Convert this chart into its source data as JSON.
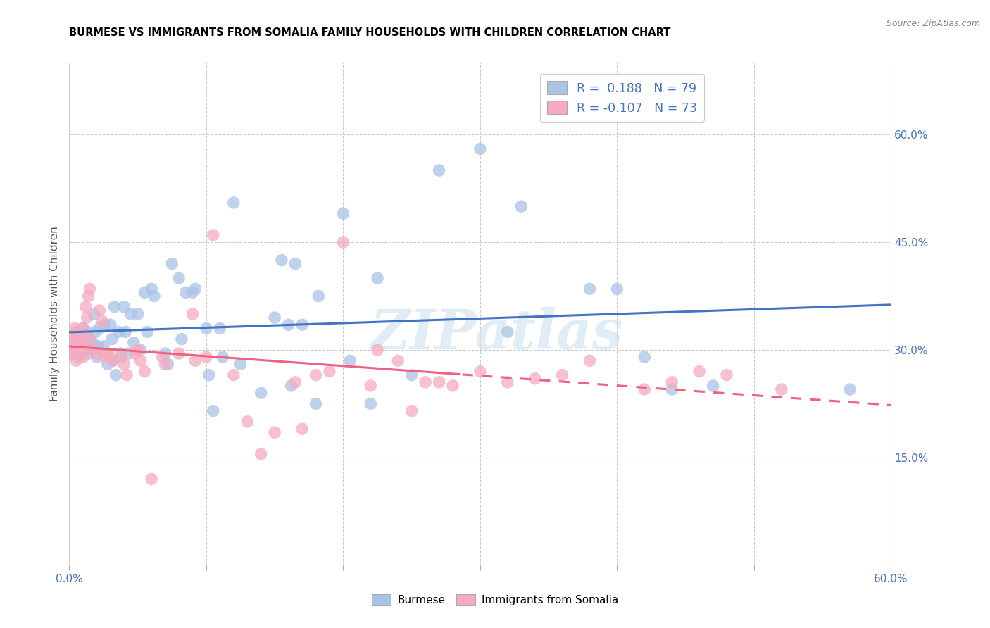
{
  "title": "BURMESE VS IMMIGRANTS FROM SOMALIA FAMILY HOUSEHOLDS WITH CHILDREN CORRELATION CHART",
  "source": "Source: ZipAtlas.com",
  "ylabel": "Family Households with Children",
  "xlim": [
    0.0,
    0.6
  ],
  "ylim": [
    0.0,
    0.7
  ],
  "yticks_right": [
    0.15,
    0.3,
    0.45,
    0.6
  ],
  "ytick_right_labels": [
    "15.0%",
    "30.0%",
    "45.0%",
    "60.0%"
  ],
  "xticks": [
    0.0,
    0.1,
    0.2,
    0.3,
    0.4,
    0.5,
    0.6
  ],
  "xticklabels": [
    "0.0%",
    "",
    "",
    "",
    "",
    "",
    "60.0%"
  ],
  "legend_r1": "R =  0.188   N = 79",
  "legend_r2": "R = -0.107   N = 73",
  "burmese_color": "#aac4e5",
  "somalia_color": "#f5aabf",
  "burmese_line_color": "#4472c4",
  "somalia_line_color": "#f06080",
  "watermark": "ZIPatlas",
  "burmese_scatter_x": [
    0.003,
    0.005,
    0.006,
    0.007,
    0.008,
    0.009,
    0.01,
    0.01,
    0.012,
    0.013,
    0.014,
    0.015,
    0.016,
    0.017,
    0.018,
    0.019,
    0.02,
    0.021,
    0.022,
    0.025,
    0.026,
    0.028,
    0.03,
    0.031,
    0.032,
    0.033,
    0.034,
    0.036,
    0.038,
    0.04,
    0.041,
    0.043,
    0.045,
    0.047,
    0.05,
    0.052,
    0.055,
    0.057,
    0.06,
    0.062,
    0.07,
    0.072,
    0.075,
    0.08,
    0.082,
    0.085,
    0.09,
    0.092,
    0.1,
    0.102,
    0.105,
    0.11,
    0.112,
    0.12,
    0.125,
    0.14,
    0.15,
    0.155,
    0.16,
    0.162,
    0.165,
    0.17,
    0.18,
    0.182,
    0.2,
    0.205,
    0.22,
    0.225,
    0.25,
    0.27,
    0.3,
    0.32,
    0.33,
    0.38,
    0.4,
    0.42,
    0.44,
    0.47,
    0.57
  ],
  "burmese_scatter_y": [
    0.295,
    0.31,
    0.3,
    0.29,
    0.315,
    0.305,
    0.32,
    0.33,
    0.31,
    0.325,
    0.295,
    0.315,
    0.3,
    0.31,
    0.35,
    0.325,
    0.29,
    0.305,
    0.33,
    0.305,
    0.335,
    0.28,
    0.335,
    0.315,
    0.285,
    0.36,
    0.265,
    0.325,
    0.295,
    0.36,
    0.325,
    0.295,
    0.35,
    0.31,
    0.35,
    0.3,
    0.38,
    0.325,
    0.385,
    0.375,
    0.295,
    0.28,
    0.42,
    0.4,
    0.315,
    0.38,
    0.38,
    0.385,
    0.33,
    0.265,
    0.215,
    0.33,
    0.29,
    0.505,
    0.28,
    0.24,
    0.345,
    0.425,
    0.335,
    0.25,
    0.42,
    0.335,
    0.225,
    0.375,
    0.49,
    0.285,
    0.225,
    0.4,
    0.265,
    0.55,
    0.58,
    0.325,
    0.5,
    0.385,
    0.385,
    0.29,
    0.245,
    0.25,
    0.245
  ],
  "somalia_scatter_x": [
    0.001,
    0.002,
    0.003,
    0.004,
    0.005,
    0.005,
    0.005,
    0.005,
    0.005,
    0.008,
    0.008,
    0.009,
    0.01,
    0.01,
    0.01,
    0.01,
    0.01,
    0.01,
    0.01,
    0.012,
    0.013,
    0.014,
    0.015,
    0.015,
    0.018,
    0.02,
    0.022,
    0.024,
    0.026,
    0.028,
    0.03,
    0.032,
    0.038,
    0.04,
    0.042,
    0.048,
    0.05,
    0.052,
    0.055,
    0.06,
    0.068,
    0.07,
    0.08,
    0.09,
    0.092,
    0.1,
    0.105,
    0.12,
    0.13,
    0.14,
    0.15,
    0.165,
    0.17,
    0.18,
    0.19,
    0.2,
    0.22,
    0.225,
    0.24,
    0.25,
    0.26,
    0.27,
    0.28,
    0.3,
    0.32,
    0.34,
    0.36,
    0.38,
    0.42,
    0.44,
    0.46,
    0.48,
    0.52
  ],
  "somalia_scatter_y": [
    0.295,
    0.305,
    0.32,
    0.33,
    0.285,
    0.3,
    0.315,
    0.325,
    0.295,
    0.31,
    0.295,
    0.31,
    0.3,
    0.315,
    0.29,
    0.305,
    0.32,
    0.33,
    0.295,
    0.36,
    0.345,
    0.375,
    0.315,
    0.385,
    0.3,
    0.295,
    0.355,
    0.34,
    0.29,
    0.295,
    0.29,
    0.285,
    0.29,
    0.28,
    0.265,
    0.295,
    0.3,
    0.285,
    0.27,
    0.12,
    0.29,
    0.28,
    0.295,
    0.35,
    0.285,
    0.29,
    0.46,
    0.265,
    0.2,
    0.155,
    0.185,
    0.255,
    0.19,
    0.265,
    0.27,
    0.45,
    0.25,
    0.3,
    0.285,
    0.215,
    0.255,
    0.255,
    0.25,
    0.27,
    0.255,
    0.26,
    0.265,
    0.285,
    0.245,
    0.255,
    0.27,
    0.265,
    0.245
  ]
}
